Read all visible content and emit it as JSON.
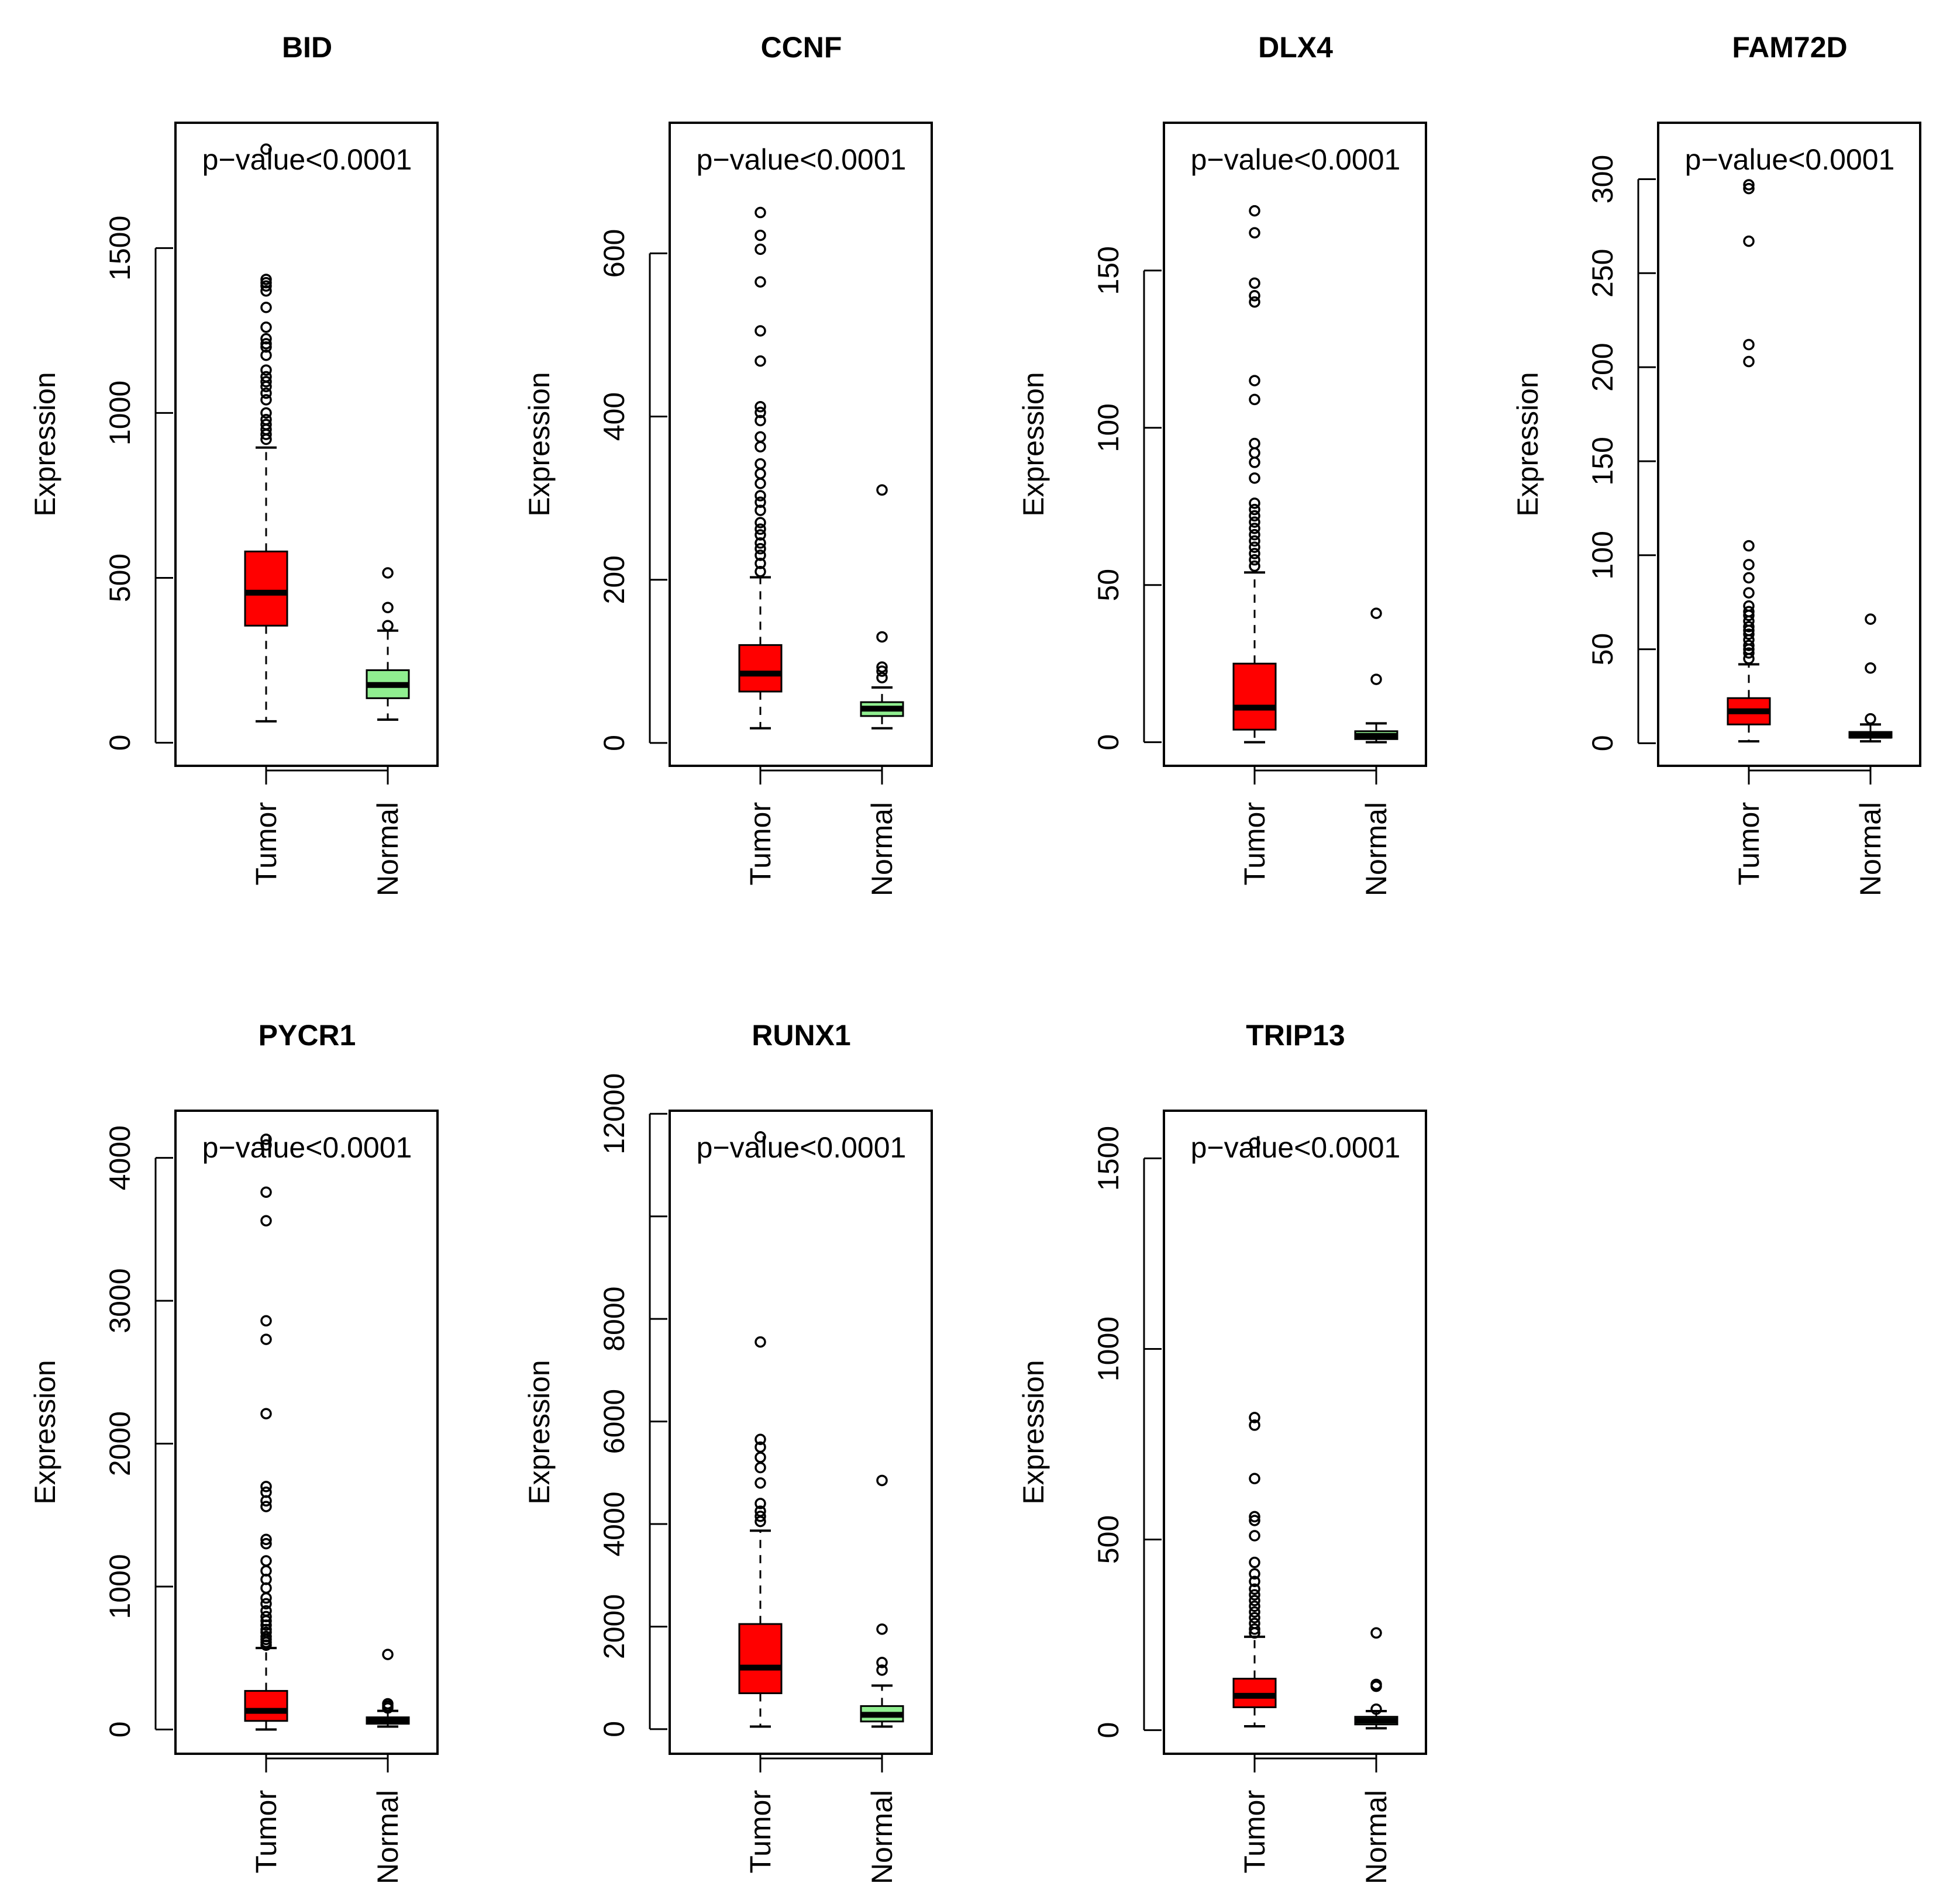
{
  "colors": {
    "tumor": "#ff0000",
    "normal": "#90ee90",
    "axis": "#000000"
  },
  "chart_data": [
    {
      "type": "boxplot",
      "title": "BID",
      "ylabel": "Expression",
      "annotation": "p−value<0.0001",
      "yticks": [
        0,
        500,
        1000,
        1500
      ],
      "ytick_labels": [
        "0",
        "500",
        "1000",
        "1500"
      ],
      "ylim": [
        -70,
        1880
      ],
      "categories": [
        "Tumor",
        "Normal"
      ],
      "series": [
        {
          "name": "Tumor",
          "color": "tumor",
          "whisker_low": 65,
          "q1": 355,
          "median": 455,
          "q3": 580,
          "whisker_high": 895,
          "outliers": [
            920,
            935,
            950,
            965,
            980,
            1000,
            1040,
            1060,
            1080,
            1095,
            1110,
            1130,
            1175,
            1200,
            1210,
            1225,
            1260,
            1320,
            1370,
            1385,
            1395,
            1405,
            1800
          ]
        },
        {
          "name": "Normal",
          "color": "normal",
          "whisker_low": 70,
          "q1": 135,
          "median": 175,
          "q3": 220,
          "whisker_high": 340,
          "outliers": [
            355,
            410,
            515
          ]
        }
      ]
    },
    {
      "type": "boxplot",
      "title": "CCNF",
      "ylabel": "Expression",
      "annotation": "p−value<0.0001",
      "yticks": [
        0,
        200,
        400,
        600
      ],
      "ytick_labels": [
        "0",
        "200",
        "400",
        "600"
      ],
      "ylim": [
        -28,
        760
      ],
      "categories": [
        "Tumor",
        "Normal"
      ],
      "series": [
        {
          "name": "Tumor",
          "color": "tumor",
          "whisker_low": 18,
          "q1": 63,
          "median": 85,
          "q3": 120,
          "whisker_high": 203,
          "outliers": [
            210,
            220,
            230,
            238,
            245,
            255,
            262,
            270,
            285,
            295,
            303,
            318,
            330,
            342,
            363,
            375,
            395,
            405,
            412,
            468,
            505,
            565,
            605,
            622,
            650
          ]
        },
        {
          "name": "Normal",
          "color": "normal",
          "whisker_low": 18,
          "q1": 33,
          "median": 42,
          "q3": 50,
          "whisker_high": 68,
          "outliers": [
            80,
            88,
            93,
            130,
            310
          ]
        }
      ]
    },
    {
      "type": "boxplot",
      "title": "DLX4",
      "ylabel": "Expression",
      "annotation": "p−value<0.0001",
      "yticks": [
        0,
        50,
        100,
        150
      ],
      "ytick_labels": [
        "0",
        "50",
        "100",
        "150"
      ],
      "ylim": [
        -7.5,
        197
      ],
      "categories": [
        "Tumor",
        "Normal"
      ],
      "series": [
        {
          "name": "Tumor",
          "color": "tumor",
          "whisker_low": 0,
          "q1": 4,
          "median": 11,
          "q3": 25,
          "whisker_high": 54,
          "outliers": [
            56,
            58,
            60,
            62,
            64,
            66,
            68,
            70,
            72,
            74,
            76,
            84,
            89,
            92,
            95,
            109,
            115,
            140,
            142,
            146,
            162,
            169
          ]
        },
        {
          "name": "Normal",
          "color": "normal",
          "whisker_low": 0,
          "q1": 1,
          "median": 2,
          "q3": 3.5,
          "whisker_high": 6,
          "outliers": [
            20,
            41
          ]
        }
      ]
    },
    {
      "type": "boxplot",
      "title": "FAM72D",
      "ylabel": "Expression",
      "annotation": "p−value<0.0001",
      "yticks": [
        0,
        50,
        100,
        150,
        200,
        250,
        300
      ],
      "ytick_labels": [
        "0",
        "50",
        "100",
        "150",
        "200",
        "250",
        "300"
      ],
      "ylim": [
        -12,
        330
      ],
      "categories": [
        "Tumor",
        "Normal"
      ],
      "series": [
        {
          "name": "Tumor",
          "color": "tumor",
          "whisker_low": 1,
          "q1": 10,
          "median": 17,
          "q3": 24,
          "whisker_high": 42,
          "outliers": [
            45,
            48,
            50,
            52,
            55,
            58,
            60,
            62,
            65,
            68,
            70,
            73,
            80,
            88,
            95,
            105,
            203,
            212,
            267,
            295,
            297
          ]
        },
        {
          "name": "Normal",
          "color": "normal",
          "whisker_low": 1,
          "q1": 3,
          "median": 4,
          "q3": 6,
          "whisker_high": 10,
          "outliers": [
            13,
            40,
            66
          ]
        }
      ]
    },
    {
      "type": "boxplot",
      "title": "PYCR1",
      "ylabel": "Expression",
      "annotation": "p−value<0.0001",
      "yticks": [
        0,
        1000,
        2000,
        3000,
        4000
      ],
      "ytick_labels": [
        "0",
        "1000",
        "2000",
        "3000",
        "4000"
      ],
      "ylim": [
        -170,
        4330
      ],
      "categories": [
        "Tumor",
        "Normal"
      ],
      "series": [
        {
          "name": "Tumor",
          "color": "tumor",
          "whisker_low": 0,
          "q1": 60,
          "median": 130,
          "q3": 270,
          "whisker_high": 570,
          "outliers": [
            590,
            610,
            630,
            650,
            680,
            700,
            730,
            760,
            790,
            830,
            880,
            920,
            990,
            1050,
            1110,
            1180,
            1300,
            1330,
            1560,
            1600,
            1660,
            1700,
            2210,
            2730,
            2860,
            3560,
            3760,
            4090,
            4130
          ]
        },
        {
          "name": "Normal",
          "color": "normal",
          "whisker_low": 20,
          "q1": 40,
          "median": 60,
          "q3": 85,
          "whisker_high": 130,
          "outliers": [
            150,
            165,
            180,
            525
          ]
        }
      ]
    },
    {
      "type": "boxplot",
      "title": "RUNX1",
      "ylabel": "Expression",
      "annotation": "p−value<0.0001",
      "yticks": [
        0,
        2000,
        4000,
        6000,
        8000,
        10000,
        12000
      ],
      "ytick_labels": [
        "0",
        "2000",
        "4000",
        "6000",
        "8000",
        "",
        "12000"
      ],
      "ylim": [
        -480,
        12060
      ],
      "categories": [
        "Tumor",
        "Normal"
      ],
      "series": [
        {
          "name": "Tumor",
          "color": "tumor",
          "whisker_low": 50,
          "q1": 700,
          "median": 1200,
          "q3": 2050,
          "whisker_high": 3870,
          "outliers": [
            4050,
            4150,
            4250,
            4400,
            4800,
            5100,
            5300,
            5500,
            5650,
            7550,
            11550
          ]
        },
        {
          "name": "Normal",
          "color": "normal",
          "whisker_low": 50,
          "q1": 150,
          "median": 280,
          "q3": 450,
          "whisker_high": 850,
          "outliers": [
            1150,
            1300,
            1950,
            4850
          ]
        }
      ]
    },
    {
      "type": "boxplot",
      "title": "TRIP13",
      "ylabel": "Expression",
      "annotation": "p−value<0.0001",
      "yticks": [
        0,
        500,
        1000,
        1500
      ],
      "ytick_labels": [
        "0",
        "500",
        "1000",
        "1500"
      ],
      "ylim": [
        -62,
        1625
      ],
      "categories": [
        "Tumor",
        "Normal"
      ],
      "series": [
        {
          "name": "Tumor",
          "color": "tumor",
          "whisker_low": 10,
          "q1": 60,
          "median": 90,
          "q3": 135,
          "whisker_high": 245,
          "outliers": [
            255,
            265,
            280,
            295,
            310,
            325,
            340,
            355,
            370,
            390,
            410,
            440,
            510,
            550,
            560,
            660,
            800,
            820,
            1540
          ]
        },
        {
          "name": "Normal",
          "color": "normal",
          "whisker_low": 5,
          "q1": 15,
          "median": 25,
          "q3": 35,
          "whisker_high": 50,
          "outliers": [
            55,
            115,
            120,
            255
          ]
        }
      ]
    }
  ]
}
